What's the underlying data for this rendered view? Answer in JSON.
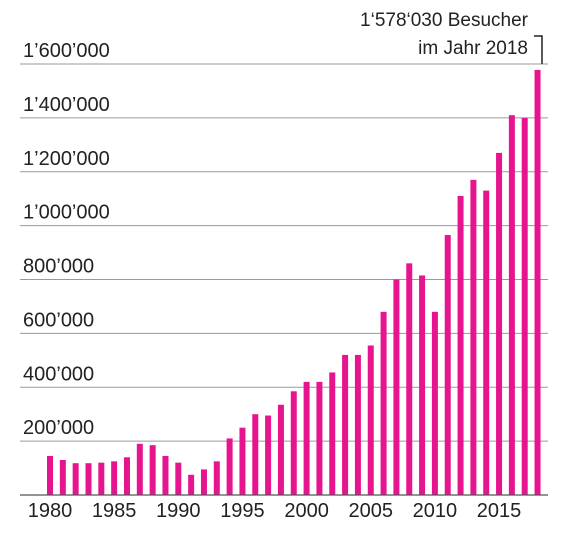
{
  "chart_data": {
    "type": "bar",
    "x": [
      1980,
      1981,
      1982,
      1983,
      1984,
      1985,
      1986,
      1987,
      1988,
      1989,
      1990,
      1991,
      1992,
      1993,
      1994,
      1995,
      1996,
      1997,
      1998,
      1999,
      2000,
      2001,
      2002,
      2003,
      2004,
      2005,
      2006,
      2007,
      2008,
      2009,
      2010,
      2011,
      2012,
      2013,
      2014,
      2015,
      2016,
      2017,
      2018
    ],
    "values": [
      145000,
      130000,
      118000,
      118000,
      120000,
      125000,
      140000,
      190000,
      185000,
      145000,
      120000,
      75000,
      95000,
      125000,
      210000,
      250000,
      300000,
      295000,
      335000,
      385000,
      420000,
      420000,
      455000,
      520000,
      520000,
      555000,
      680000,
      800000,
      860000,
      815000,
      680000,
      965000,
      1110000,
      1170000,
      1130000,
      1270000,
      1410000,
      1400000,
      1578030
    ],
    "yticks": [
      {
        "value": 200000,
        "label": "200’000"
      },
      {
        "value": 400000,
        "label": "400’000"
      },
      {
        "value": 600000,
        "label": "600’000"
      },
      {
        "value": 800000,
        "label": "800’000"
      },
      {
        "value": 1000000,
        "label": "1’000’000"
      },
      {
        "value": 1200000,
        "label": "1’200’000"
      },
      {
        "value": 1400000,
        "label": "1’400’000"
      },
      {
        "value": 1600000,
        "label": "1’600’000"
      }
    ],
    "xticks": [
      {
        "value": 1980,
        "label": "1980"
      },
      {
        "value": 1985,
        "label": "1985"
      },
      {
        "value": 1990,
        "label": "1990"
      },
      {
        "value": 1995,
        "label": "1995"
      },
      {
        "value": 2000,
        "label": "2000"
      },
      {
        "value": 2005,
        "label": "2005"
      },
      {
        "value": 2010,
        "label": "2010"
      },
      {
        "value": 2015,
        "label": "2015"
      }
    ],
    "ylim": [
      0,
      1600000
    ],
    "color": "#e6158f",
    "grid": true,
    "annotation": {
      "line1": "1‘578‘030 Besucher",
      "line2": "im Jahr 2018",
      "target_x": 2018
    }
  }
}
